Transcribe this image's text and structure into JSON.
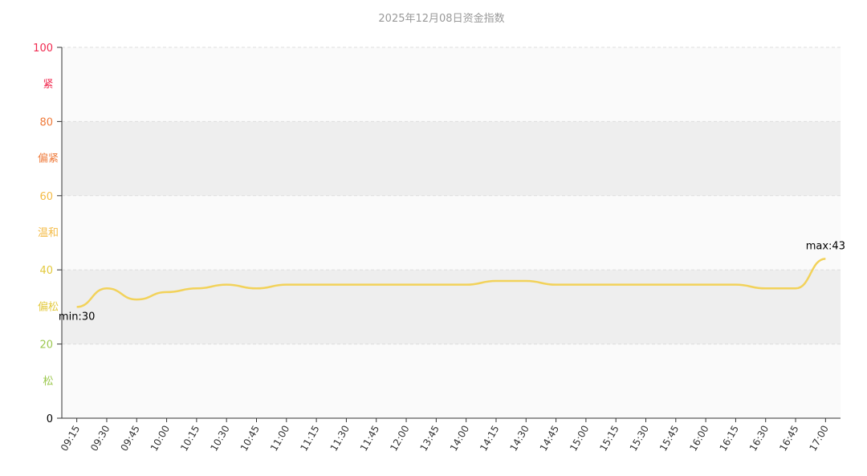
{
  "chart_data": {
    "type": "line",
    "title": "2025年12月08日资金指数",
    "categories": [
      "09:15",
      "09:30",
      "09:45",
      "10:00",
      "10:15",
      "10:30",
      "10:45",
      "11:00",
      "11:15",
      "11:30",
      "11:45",
      "12:00",
      "13:45",
      "14:00",
      "14:15",
      "14:30",
      "14:45",
      "15:00",
      "15:15",
      "15:30",
      "15:45",
      "16:00",
      "16:15",
      "16:30",
      "16:45",
      "17:00"
    ],
    "values": [
      30,
      35,
      32,
      34,
      35,
      36,
      35,
      36,
      36,
      36,
      36,
      36,
      36,
      36,
      37,
      37,
      36,
      36,
      36,
      36,
      36,
      36,
      36,
      35,
      35,
      43
    ],
    "value_labels": [
      "min:30",
      null,
      null,
      null,
      null,
      null,
      null,
      null,
      null,
      null,
      null,
      null,
      null,
      null,
      null,
      null,
      null,
      null,
      null,
      null,
      null,
      null,
      null,
      null,
      null,
      "max:43"
    ],
    "color": "#f2d25a",
    "ylim": [
      0,
      100
    ],
    "yticks": [
      0,
      20,
      40,
      60,
      80,
      100
    ],
    "grid": true,
    "zones": [
      {
        "label": "松",
        "from": 0,
        "to": 20,
        "color": "#9cc84f"
      },
      {
        "label": "偏松",
        "from": 20,
        "to": 40,
        "color": "#e3c93c"
      },
      {
        "label": "温和",
        "from": 40,
        "to": 60,
        "color": "#f4bb45"
      },
      {
        "label": "偏紧",
        "from": 60,
        "to": 80,
        "color": "#ef7a3a"
      },
      {
        "label": "紧",
        "from": 80,
        "to": 100,
        "color": "#f0294f"
      }
    ]
  }
}
